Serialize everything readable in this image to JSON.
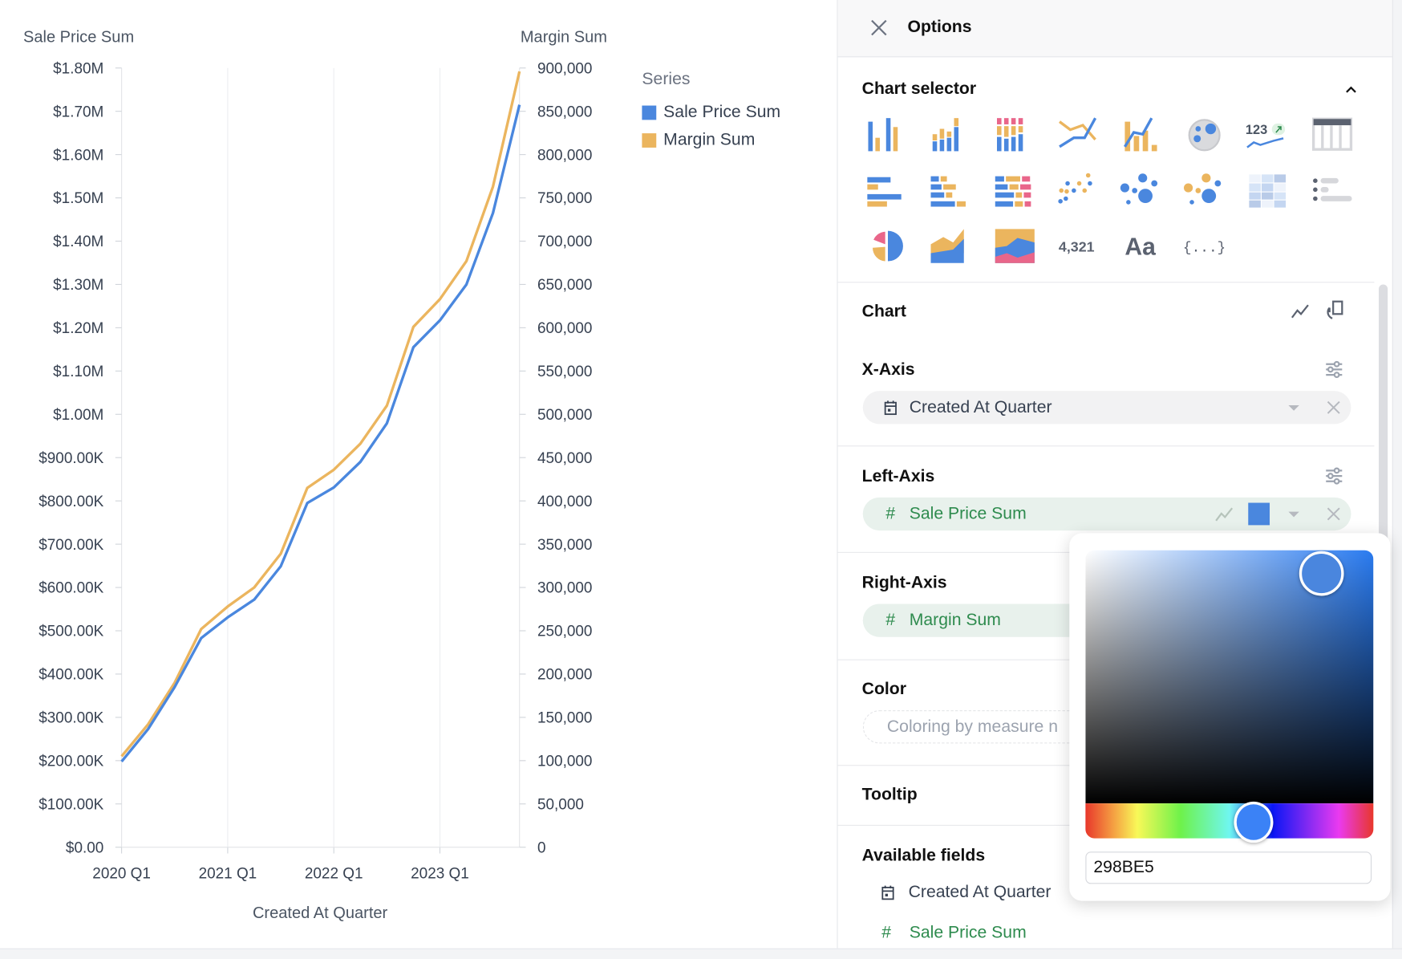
{
  "chart_data": {
    "type": "line",
    "title": "",
    "xlabel": "Created At Quarter",
    "ylabel_left": "Sale Price Sum",
    "ylabel_right": "Margin Sum",
    "x": [
      "2020 Q1",
      "2020 Q2",
      "2020 Q3",
      "2020 Q4",
      "2021 Q1",
      "2021 Q2",
      "2021 Q3",
      "2021 Q4",
      "2022 Q1",
      "2022 Q2",
      "2022 Q3",
      "2022 Q4",
      "2023 Q1",
      "2023 Q2",
      "2023 Q3",
      "2023 Q4"
    ],
    "x_tick_labels": [
      "2020 Q1",
      "2021 Q1",
      "2022 Q1",
      "2023 Q1"
    ],
    "ylim_left": [
      0,
      1800000
    ],
    "ylim_right": [
      0,
      900000
    ],
    "y_ticks_left": [
      "$0.00",
      "$100.00K",
      "$200.00K",
      "$300.00K",
      "$400.00K",
      "$500.00K",
      "$600.00K",
      "$700.00K",
      "$800.00K",
      "$900.00K",
      "$1.00M",
      "$1.10M",
      "$1.20M",
      "$1.30M",
      "$1.40M",
      "$1.50M",
      "$1.60M",
      "$1.70M",
      "$1.80M"
    ],
    "y_ticks_right": [
      "0",
      "50,000",
      "100,000",
      "150,000",
      "200,000",
      "250,000",
      "300,000",
      "350,000",
      "400,000",
      "450,000",
      "500,000",
      "550,000",
      "600,000",
      "650,000",
      "700,000",
      "750,000",
      "800,000",
      "850,000",
      "900,000"
    ],
    "series": [
      {
        "name": "Sale Price Sum",
        "axis": "left",
        "color": "#4a87de",
        "values": [
          198000,
          273000,
          370000,
          483000,
          531000,
          572000,
          649000,
          795000,
          831000,
          890000,
          979000,
          1155000,
          1217000,
          1300000,
          1465000,
          1715000
        ]
      },
      {
        "name": "Margin Sum",
        "axis": "right",
        "color": "#ebb55e",
        "values": [
          105000,
          142000,
          190000,
          252000,
          278000,
          300000,
          339000,
          415000,
          436000,
          466000,
          510000,
          601000,
          633000,
          677000,
          763000,
          896000
        ]
      }
    ],
    "legend": {
      "title": "Series",
      "position": "right"
    },
    "grid": true
  },
  "panel": {
    "title": "Options",
    "chart_selector": "Chart selector",
    "chart_section": "Chart",
    "x_axis": {
      "label": "X-Axis",
      "field": "Created At Quarter"
    },
    "left_axis": {
      "label": "Left-Axis",
      "field": "Sale Price Sum",
      "color": "#4a87de"
    },
    "right_axis": {
      "label": "Right-Axis",
      "field": "Margin Sum"
    },
    "color": {
      "label": "Color",
      "placeholder": "Coloring by measure n"
    },
    "tooltip": {
      "label": "Tooltip"
    },
    "available_fields": {
      "label": "Available fields",
      "items": [
        {
          "name": "Created At Quarter",
          "type": "date"
        },
        {
          "name": "Sale Price Sum",
          "type": "measure"
        }
      ]
    },
    "icon_texts": {
      "kpi": "123",
      "number": "4,321",
      "text": "Aa",
      "json": "{...}"
    }
  },
  "color_picker": {
    "hex": "298BE5",
    "hue": 213
  }
}
